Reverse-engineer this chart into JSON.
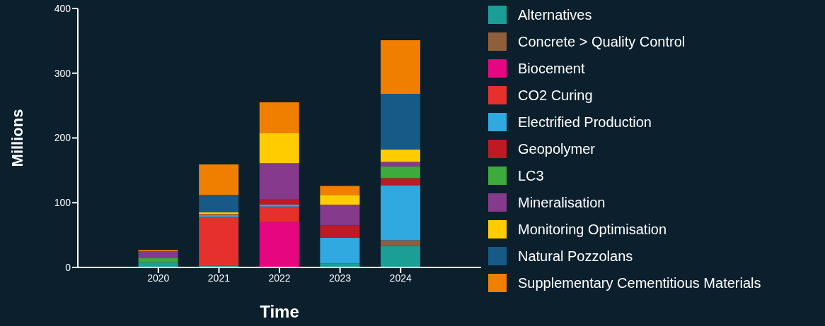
{
  "chart_data": {
    "type": "bar",
    "stacked": true,
    "xlabel": "Time",
    "ylabel": "Millions",
    "categories": [
      "2020",
      "2021",
      "2022",
      "2023",
      "2024"
    ],
    "ylim": [
      0,
      400
    ],
    "yticks": [
      0,
      100,
      200,
      300,
      400
    ],
    "grid": false,
    "legend": "right",
    "series": [
      {
        "name": "Alternatives",
        "color": "#1a9e96",
        "values": [
          8,
          3,
          null,
          6,
          33
        ]
      },
      {
        "name": "Concrete > Quality Control",
        "color": "#8f5e3a",
        "values": [
          null,
          null,
          null,
          null,
          9
        ]
      },
      {
        "name": "Biocement",
        "color": "#e6067f",
        "values": [
          null,
          null,
          70,
          null,
          null
        ]
      },
      {
        "name": "CO2 Curing",
        "color": "#e6302e",
        "values": [
          null,
          75,
          24,
          null,
          null
        ]
      },
      {
        "name": "Electrified Production",
        "color": "#30a8e0",
        "values": [
          null,
          3,
          3,
          40,
          85
        ]
      },
      {
        "name": "Geopolymer",
        "color": "#be1a24",
        "values": [
          null,
          1,
          8,
          19,
          11
        ]
      },
      {
        "name": "LC3",
        "color": "#3caa3c",
        "values": [
          7,
          null,
          null,
          null,
          18
        ]
      },
      {
        "name": "Mineralisation",
        "color": "#853a8c",
        "values": [
          10,
          null,
          56,
          32,
          7
        ]
      },
      {
        "name": "Monitoring Optimisation",
        "color": "#ffcc00",
        "values": [
          null,
          3,
          47,
          15,
          19
        ]
      },
      {
        "name": "Natural Pozzolans",
        "color": "#175a88",
        "values": [
          null,
          27,
          null,
          null,
          86
        ]
      },
      {
        "name": "Supplementary Cementitious Materials",
        "color": "#f07f00",
        "values": [
          2,
          47,
          47,
          14,
          83
        ]
      }
    ]
  }
}
